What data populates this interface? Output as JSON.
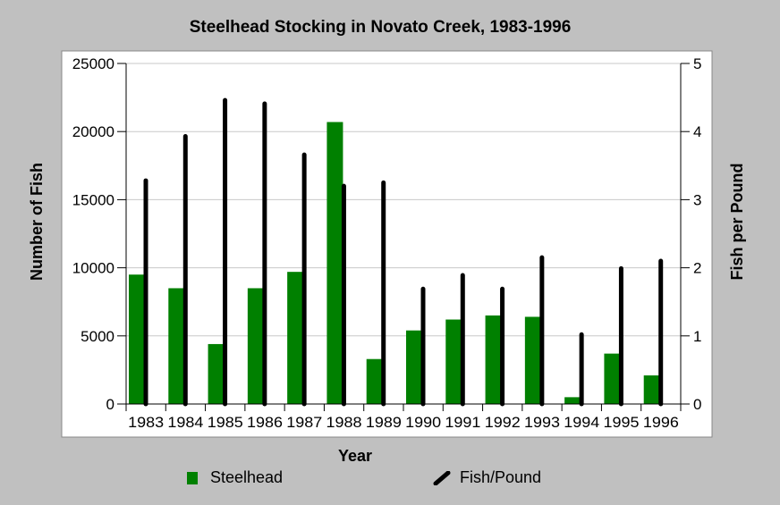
{
  "chart_data": {
    "type": "bar",
    "title": "Steelhead Stocking in Novato Creek, 1983-1996",
    "xlabel": "Year",
    "ylabel_left": "Number of Fish",
    "ylabel_right": "Fish per Pound",
    "categories": [
      "1983",
      "1984",
      "1985",
      "1986",
      "1987",
      "1988",
      "1989",
      "1990",
      "1991",
      "1992",
      "1993",
      "1994",
      "1995",
      "1996"
    ],
    "series": [
      {
        "name": "Steelhead",
        "type": "bar",
        "axis": "left",
        "color": "#008000",
        "values": [
          9500,
          8500,
          4400,
          8500,
          9700,
          20700,
          3300,
          5400,
          6200,
          6500,
          6400,
          500,
          3700,
          2100
        ]
      },
      {
        "name": "Fish/Pound",
        "type": "line-bar",
        "axis": "right",
        "color": "#000000",
        "values": [
          3.28,
          3.93,
          4.46,
          4.41,
          3.66,
          3.2,
          3.25,
          1.69,
          1.89,
          1.69,
          2.15,
          1.02,
          1.99,
          2.1
        ]
      }
    ],
    "ylim_left": [
      0,
      25000
    ],
    "yticks_left": [
      "0",
      "5000",
      "10000",
      "15000",
      "20000",
      "25000"
    ],
    "ylim_right": [
      0,
      5
    ],
    "yticks_right": [
      "0",
      "1",
      "2",
      "3",
      "4",
      "5"
    ],
    "grid": true,
    "legend_position": "bottom"
  },
  "legend": {
    "steelhead_label": "Steelhead",
    "fishpound_label": "Fish/Pound"
  }
}
